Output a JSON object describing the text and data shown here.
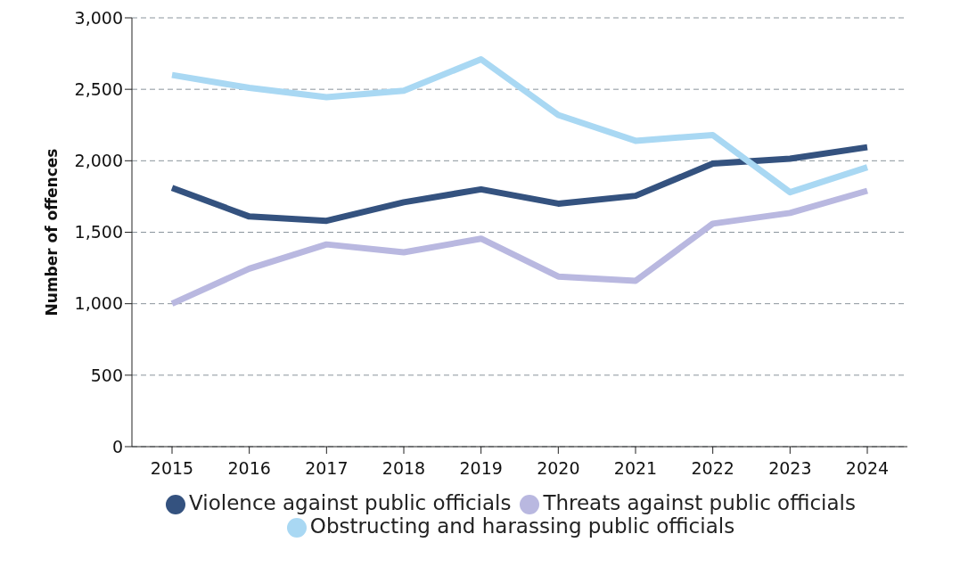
{
  "chart_data": {
    "type": "line",
    "ylabel": "Number of offences",
    "categories": [
      "2015",
      "2016",
      "2017",
      "2018",
      "2019",
      "2020",
      "2021",
      "2022",
      "2023",
      "2024"
    ],
    "series": [
      {
        "name": "Violence against public officials",
        "color": "#34527f",
        "values": [
          1810,
          1610,
          1580,
          1710,
          1800,
          1700,
          1755,
          1980,
          2015,
          2095
        ]
      },
      {
        "name": "Threats against public officials",
        "color": "#b9b8e0",
        "values": [
          1000,
          1245,
          1415,
          1360,
          1455,
          1190,
          1160,
          1560,
          1635,
          1790
        ]
      },
      {
        "name": "Obstructing and harassing public officials",
        "color": "#a9d8f3",
        "values": [
          2600,
          2510,
          2445,
          2490,
          2710,
          2320,
          2140,
          2180,
          1780,
          1955
        ]
      }
    ],
    "ylim": [
      0,
      3000
    ],
    "yticks": [
      0,
      500,
      {
        "value": 1000,
        "label": "1,000"
      },
      {
        "value": 1500,
        "label": "1,500"
      },
      {
        "value": 2000,
        "label": "2,000"
      },
      {
        "value": 2500,
        "label": "2,500"
      },
      {
        "value": 3000,
        "label": "3,000"
      }
    ],
    "grid": "y",
    "legend": "bottom",
    "marker": "none",
    "line_style": "solid"
  }
}
